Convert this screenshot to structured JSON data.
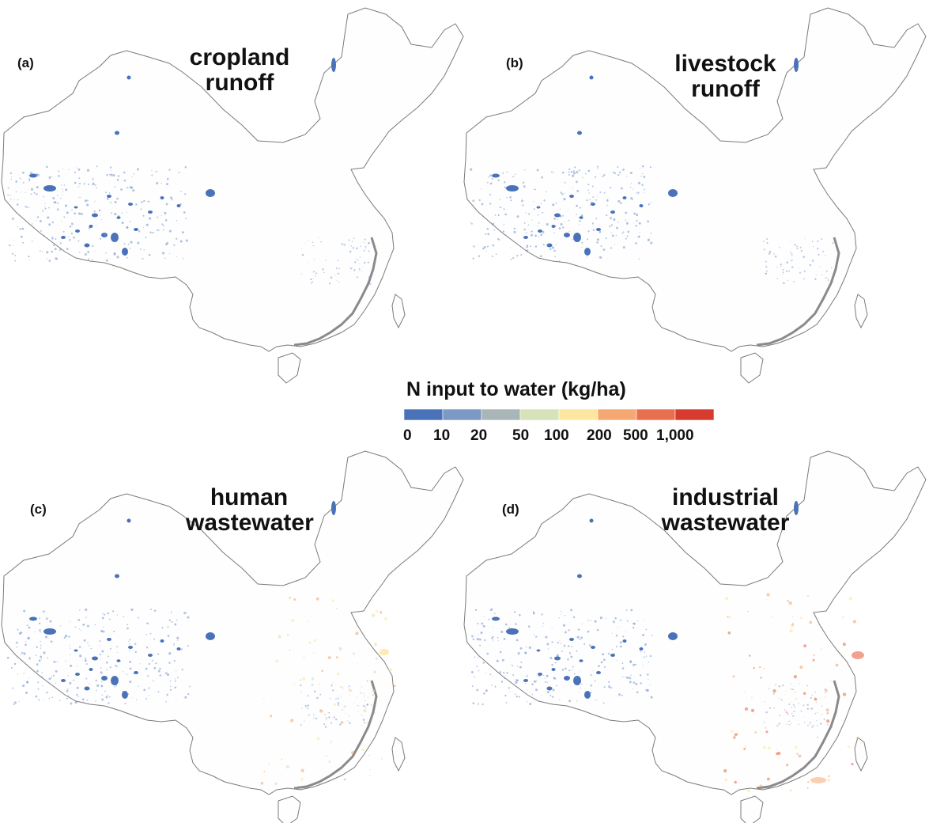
{
  "panels": [
    {
      "letter": "(a)",
      "title_line1": "cropland",
      "title_line2": "runoff"
    },
    {
      "letter": "(b)",
      "title_line1": "livestock",
      "title_line2": "runoff"
    },
    {
      "letter": "(c)",
      "title_line1": "human",
      "title_line2": "wastewater"
    },
    {
      "letter": "(d)",
      "title_line1": "industrial",
      "title_line2": "wastewater"
    }
  ],
  "legend": {
    "title": "N input to water (kg/ha)",
    "tick_labels": [
      "0",
      "10",
      "20",
      "50",
      "100",
      "200",
      "500",
      "1,000"
    ],
    "colors": [
      "#4a72b8",
      "#7c98c4",
      "#a8b6b8",
      "#d6e2b8",
      "#fde6a0",
      "#f5a872",
      "#e9704f",
      "#d73a2f"
    ]
  },
  "colors": {
    "border": "#7a7a7a",
    "coast": "#8a8a8a",
    "water": "#4a72b8"
  }
}
